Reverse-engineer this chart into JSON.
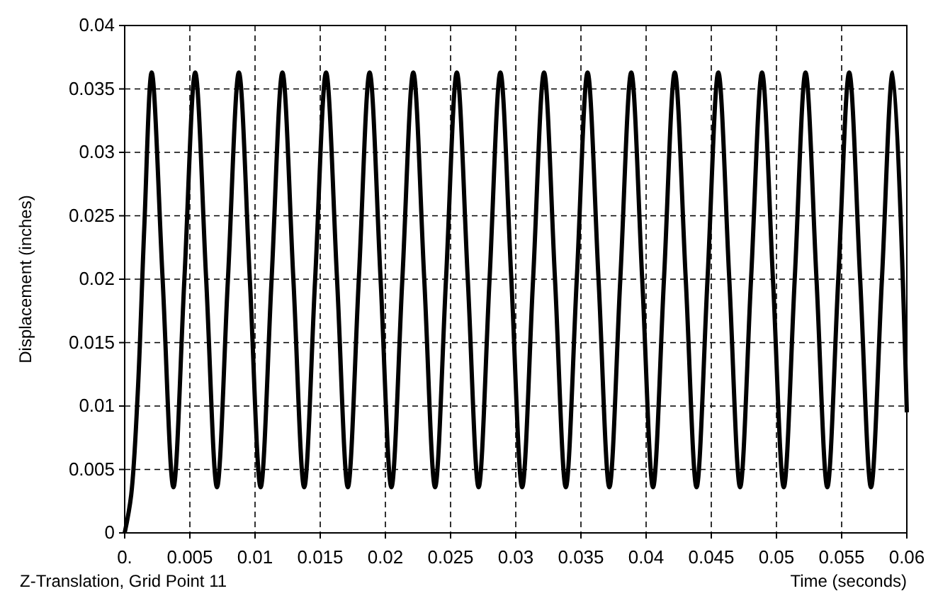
{
  "chart_data": {
    "type": "line",
    "xlabel": "Time (seconds)",
    "ylabel": "Displacement (inches)",
    "annotations": [
      "Z-Translation, Grid Point 11"
    ],
    "xlim": [
      0,
      0.06
    ],
    "xticks": [
      {
        "value": 0,
        "label": "0."
      },
      0.005,
      0.01,
      0.015,
      0.02,
      0.025,
      0.03,
      0.035,
      0.04,
      0.045,
      0.05,
      0.055,
      0.06
    ],
    "ylim": [
      0,
      0.04
    ],
    "yticks": [
      0,
      0.005,
      0.01,
      0.015,
      0.02,
      0.025,
      0.03,
      0.035,
      0.04
    ],
    "grid": true,
    "line_style": "solid",
    "series": [
      {
        "color": "#000000",
        "x": [
          0,
          0.0005,
          0.001,
          0.0015,
          0.00207,
          0.00291,
          0.00374,
          0.00458,
          0.00541,
          0.00625,
          0.00708,
          0.00792,
          0.00876,
          0.0096,
          0.01043,
          0.01127,
          0.0121,
          0.01294,
          0.01377,
          0.01461,
          0.01545,
          0.01629,
          0.01712,
          0.01796,
          0.01879,
          0.01963,
          0.02046,
          0.0213,
          0.02214,
          0.02298,
          0.02381,
          0.02465,
          0.02548,
          0.02632,
          0.02715,
          0.02799,
          0.02882,
          0.02966,
          0.03049,
          0.03133,
          0.03217,
          0.03301,
          0.03384,
          0.03468,
          0.03551,
          0.03635,
          0.03718,
          0.03802,
          0.03886,
          0.0397,
          0.04053,
          0.04137,
          0.0422,
          0.04304,
          0.04387,
          0.04471,
          0.04554,
          0.04638,
          0.04721,
          0.04805,
          0.04889,
          0.04973,
          0.05056,
          0.0514,
          0.05223,
          0.05307,
          0.0539,
          0.05474,
          0.05558,
          0.05642,
          0.05725,
          0.05809,
          0.05892,
          0.06
        ],
        "values": [
          0,
          0.003,
          0.011,
          0.024,
          0.0363,
          0.02,
          0.0036,
          0.02,
          0.0363,
          0.02,
          0.0036,
          0.02,
          0.0363,
          0.02,
          0.0036,
          0.02,
          0.0363,
          0.02,
          0.0036,
          0.02,
          0.0363,
          0.02,
          0.0036,
          0.02,
          0.0363,
          0.02,
          0.0036,
          0.02,
          0.0363,
          0.02,
          0.0036,
          0.02,
          0.0363,
          0.02,
          0.0036,
          0.02,
          0.0363,
          0.02,
          0.0036,
          0.02,
          0.0363,
          0.02,
          0.0036,
          0.02,
          0.0363,
          0.02,
          0.0036,
          0.02,
          0.0363,
          0.02,
          0.0036,
          0.02,
          0.0363,
          0.02,
          0.0036,
          0.02,
          0.0363,
          0.02,
          0.0036,
          0.02,
          0.0363,
          0.02,
          0.0036,
          0.02,
          0.0363,
          0.02,
          0.0036,
          0.02,
          0.0363,
          0.02,
          0.0036,
          0.02,
          0.0363,
          0.0095
        ]
      }
    ]
  }
}
